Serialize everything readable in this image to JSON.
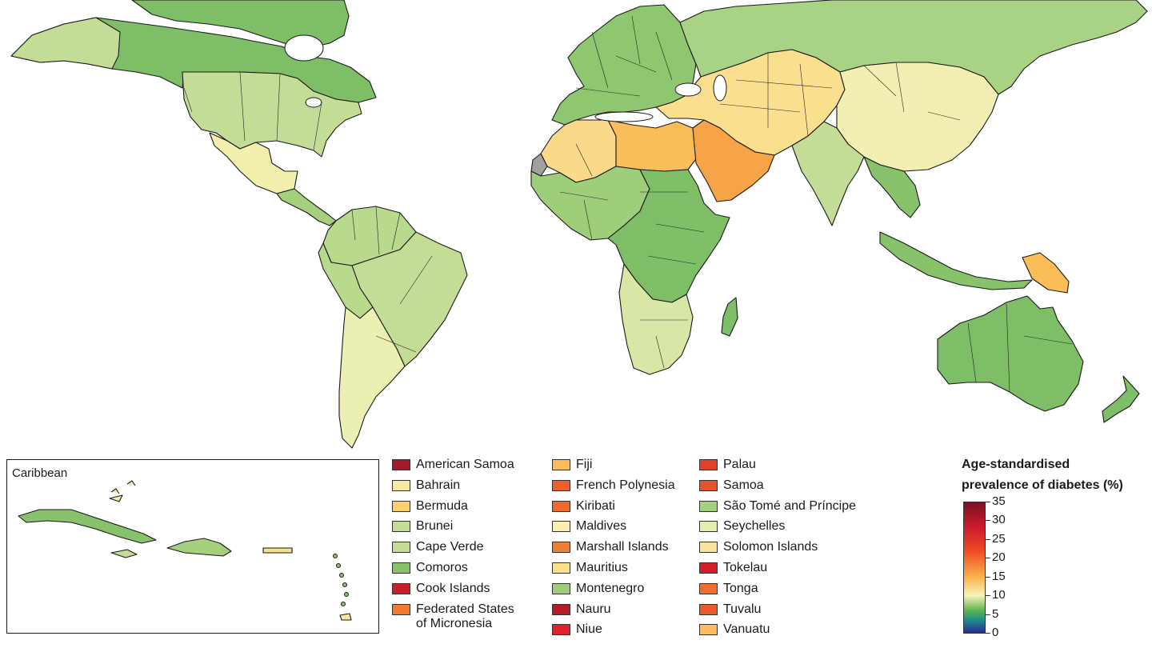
{
  "inset": {
    "title": "Caribbean"
  },
  "legend": {
    "columns": [
      [
        {
          "label": "American Samoa",
          "color": "#a11a2b"
        },
        {
          "label": "Bahrain",
          "color": "#f6e9a3"
        },
        {
          "label": "Bermuda",
          "color": "#fbcf6b"
        },
        {
          "label": "Brunei",
          "color": "#c4dd96"
        },
        {
          "label": "Cape Verde",
          "color": "#c4dd96"
        },
        {
          "label": "Comoros",
          "color": "#88c26a"
        },
        {
          "label": "Cook Islands",
          "color": "#c8202b"
        },
        {
          "label": "Federated States",
          "label2": "of Micronesia",
          "color": "#f07a2e"
        }
      ],
      [
        {
          "label": "Fiji",
          "color": "#fbbd58"
        },
        {
          "label": "French Polynesia",
          "color": "#ee5f2c"
        },
        {
          "label": "Kiribati",
          "color": "#ee6a2c"
        },
        {
          "label": "Maldives",
          "color": "#f8efb0"
        },
        {
          "label": "Marshall Islands",
          "color": "#f0802f"
        },
        {
          "label": "Mauritius",
          "color": "#fadf89"
        },
        {
          "label": "Montenegro",
          "color": "#9fce7b"
        },
        {
          "label": "Nauru",
          "color": "#b51a2a"
        },
        {
          "label": "Niue",
          "color": "#e0202b"
        }
      ],
      [
        {
          "label": "Palau",
          "color": "#e2402b"
        },
        {
          "label": "Samoa",
          "color": "#e5532c"
        },
        {
          "label": "São Tomé and Príncipe",
          "color": "#a5d07e"
        },
        {
          "label": "Seychelles",
          "color": "#e3edb0"
        },
        {
          "label": "Solomon Islands",
          "color": "#fae499"
        },
        {
          "label": "Tokelau",
          "color": "#d21e2a"
        },
        {
          "label": "Tonga",
          "color": "#ef6d2e"
        },
        {
          "label": "Tuvalu",
          "color": "#e85a2b"
        },
        {
          "label": "Vanuatu",
          "color": "#fbbe5c"
        }
      ]
    ]
  },
  "color_scale": {
    "title_line1": "Age-standardised",
    "title_line2": "prevalence of diabetes (%)",
    "ticks": [
      "35",
      "30",
      "25",
      "20",
      "15",
      "10",
      "5",
      "0"
    ],
    "min": 0,
    "max": 35,
    "stops": [
      {
        "value": 0,
        "color": "#2a2a8f"
      },
      {
        "value": 3.5,
        "color": "#1f8f8a"
      },
      {
        "value": 6,
        "color": "#5fb44f"
      },
      {
        "value": 10,
        "color": "#f7f3b8"
      },
      {
        "value": 15,
        "color": "#fbb24a"
      },
      {
        "value": 22,
        "color": "#ee4a26"
      },
      {
        "value": 28,
        "color": "#cf1d2b"
      },
      {
        "value": 35,
        "color": "#7a1024"
      }
    ]
  },
  "region_colors": {
    "north_america_canada": "#7ebe66",
    "usa": "#c4dd96",
    "mexico": "#f3f0ad",
    "central_america": "#a5d07e",
    "south_america_north": "#b9d98d",
    "brazil": "#c4dd96",
    "argentina_chile": "#ecefb2",
    "greenland": "#7ebe66",
    "europe": "#8fc770",
    "russia": "#a8d284",
    "north_africa": "#fbd98a",
    "libya_egypt": "#fbbd58",
    "arabia": "#f7a448",
    "iran_central_asia": "#fadf8f",
    "mongolia_china": "#f3efb2",
    "india": "#c4dd96",
    "se_asia": "#88c26a",
    "west_africa": "#9fce7b",
    "central_africa": "#7ebe66",
    "east_africa": "#6fb560",
    "southern_africa": "#d8e6a6",
    "australia": "#7ebe66",
    "png": "#fbbd58",
    "madagascar": "#7ebe66",
    "no_data": "#a0a0a0"
  }
}
